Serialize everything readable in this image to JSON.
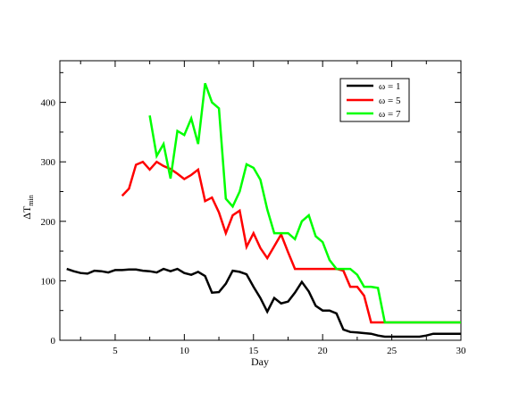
{
  "chart_data": {
    "type": "line",
    "title": "",
    "xlabel": "Day",
    "ylabel": "ΔT",
    "ylabel_subscript": "min",
    "xlim": [
      1,
      30
    ],
    "ylim": [
      0,
      470
    ],
    "xticks": [
      5,
      10,
      15,
      20,
      25,
      30
    ],
    "xtick_labels": [
      "5",
      "10",
      "15",
      "20",
      "25",
      "30"
    ],
    "yticks": [
      0,
      100,
      200,
      300,
      400
    ],
    "ytick_labels": [
      "0",
      "100",
      "200",
      "300",
      "400"
    ],
    "grid": false,
    "legend_position": "top-right",
    "series": [
      {
        "name": "ω = 1",
        "color": "#000000",
        "x": [
          1.5,
          2,
          2.5,
          3,
          3.5,
          4,
          4.5,
          5,
          5.5,
          6,
          6.5,
          7,
          7.5,
          8,
          8.5,
          9,
          9.5,
          10,
          10.5,
          11,
          11.5,
          12,
          12.5,
          13,
          13.5,
          14,
          14.5,
          15,
          15.5,
          16,
          16.5,
          17,
          17.5,
          18,
          18.5,
          19,
          19.5,
          20,
          20.5,
          21,
          21.5,
          22,
          22.5,
          23,
          23.5,
          24,
          24.5,
          25,
          25.5,
          26,
          26.5,
          27,
          27.5,
          28,
          28.5,
          29,
          29.5,
          30
        ],
        "y": [
          120,
          116,
          113,
          112,
          117,
          116,
          114,
          118,
          118,
          119,
          119,
          117,
          116,
          114,
          120,
          116,
          120,
          113,
          110,
          115,
          108,
          80,
          81,
          95,
          117,
          115,
          111,
          90,
          71,
          48,
          71,
          62,
          65,
          80,
          98,
          82,
          58,
          50,
          50,
          45,
          18,
          14,
          13,
          12,
          11,
          8,
          6,
          6,
          6,
          6,
          6,
          6,
          8,
          11,
          11,
          11,
          11,
          11
        ]
      },
      {
        "name": "ω = 5",
        "color": "#ff0000",
        "x": [
          5.5,
          6,
          6.5,
          7,
          7.5,
          8,
          8.5,
          9,
          9.5,
          10,
          10.5,
          11,
          11.5,
          12,
          12.5,
          13,
          13.5,
          14,
          14.5,
          15,
          15.5,
          16,
          16.5,
          17,
          17.5,
          18,
          18.5,
          19,
          19.5,
          20,
          20.5,
          21,
          21.5,
          22,
          22.5,
          23,
          23.5,
          24,
          24.5,
          25,
          25.5,
          26,
          26.5,
          27,
          27.5,
          28,
          28.5,
          29,
          29.5,
          30
        ],
        "y": [
          243,
          255,
          295,
          300,
          287,
          300,
          293,
          288,
          280,
          271,
          278,
          287,
          234,
          240,
          215,
          180,
          210,
          218,
          157,
          180,
          155,
          138,
          158,
          178,
          148,
          120,
          120,
          120,
          120,
          120,
          120,
          120,
          117,
          90,
          90,
          75,
          30,
          30,
          30,
          30,
          30,
          30,
          30,
          30,
          30,
          30,
          30,
          30,
          30,
          30
        ]
      },
      {
        "name": "ω = 7",
        "color": "#00ff00",
        "x": [
          7.5,
          8,
          8.5,
          9,
          9.5,
          10,
          10.5,
          11,
          11.5,
          12,
          12.5,
          13,
          13.5,
          14,
          14.5,
          15,
          15.5,
          16,
          16.5,
          17,
          17.5,
          18,
          18.5,
          19,
          19.5,
          20,
          20.5,
          21,
          21.5,
          22,
          22.5,
          23,
          23.5,
          24,
          24.5,
          25,
          25.5,
          26,
          26.5,
          27,
          27.5,
          28,
          28.5,
          29,
          29.5,
          30
        ],
        "y": [
          378,
          310,
          330,
          272,
          352,
          345,
          373,
          330,
          432,
          400,
          390,
          238,
          225,
          250,
          296,
          290,
          270,
          220,
          180,
          180,
          180,
          170,
          200,
          210,
          175,
          165,
          135,
          120,
          120,
          120,
          110,
          90,
          90,
          88,
          30,
          30,
          30,
          30,
          30,
          30,
          30,
          30,
          30,
          30,
          30,
          30
        ]
      }
    ]
  }
}
